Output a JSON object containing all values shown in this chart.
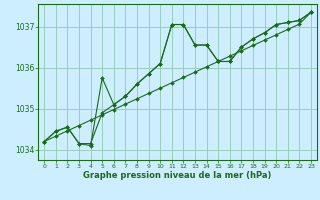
{
  "background_color": "#cceeff",
  "grid_color": "#99ccbb",
  "line_color": "#1a6b1a",
  "xlabel": "Graphe pression niveau de la mer (hPa)",
  "xlim": [
    -0.5,
    23.5
  ],
  "ylim": [
    1033.75,
    1037.55
  ],
  "yticks": [
    1034,
    1035,
    1036,
    1037
  ],
  "xticks": [
    0,
    1,
    2,
    3,
    4,
    5,
    6,
    7,
    8,
    9,
    10,
    11,
    12,
    13,
    14,
    15,
    16,
    17,
    18,
    19,
    20,
    21,
    22,
    23
  ],
  "series": [
    {
      "x": [
        0,
        1,
        2,
        3,
        4,
        5,
        6,
        7,
        8,
        9,
        10,
        11,
        12,
        13,
        14,
        15,
        16,
        17,
        18,
        19,
        20,
        21,
        22,
        23
      ],
      "y": [
        1034.2,
        1034.45,
        1034.55,
        1034.15,
        1034.15,
        1034.9,
        1035.1,
        1035.3,
        1035.6,
        1035.85,
        1036.1,
        1037.05,
        1037.05,
        1036.55,
        1036.55,
        1036.15,
        1036.15,
        1036.5,
        1036.7,
        1036.85,
        1037.05,
        1037.1,
        1037.15,
        1037.35
      ]
    },
    {
      "x": [
        0,
        1,
        2,
        3,
        4,
        5,
        6,
        7,
        8,
        9,
        10,
        11,
        12,
        13,
        14,
        15,
        16,
        17,
        18,
        19,
        20,
        21,
        22,
        23
      ],
      "y": [
        1034.2,
        1034.45,
        1034.55,
        1034.15,
        1034.1,
        1035.75,
        1035.1,
        1035.3,
        1035.6,
        1035.85,
        1036.1,
        1037.05,
        1037.05,
        1036.55,
        1036.55,
        1036.15,
        1036.15,
        1036.5,
        1036.7,
        1036.85,
        1037.05,
        1037.1,
        1037.15,
        1037.35
      ]
    },
    {
      "x": [
        0,
        1,
        2,
        3,
        4,
        5,
        6,
        7,
        8,
        9,
        10,
        11,
        12,
        13,
        14,
        15,
        16,
        17,
        18,
        19,
        20,
        21,
        22,
        23
      ],
      "y": [
        1034.2,
        1034.33,
        1034.46,
        1034.59,
        1034.72,
        1034.85,
        1034.98,
        1035.11,
        1035.24,
        1035.37,
        1035.5,
        1035.63,
        1035.76,
        1035.89,
        1036.02,
        1036.15,
        1036.28,
        1036.41,
        1036.54,
        1036.67,
        1036.8,
        1036.93,
        1037.06,
        1037.35
      ]
    }
  ]
}
